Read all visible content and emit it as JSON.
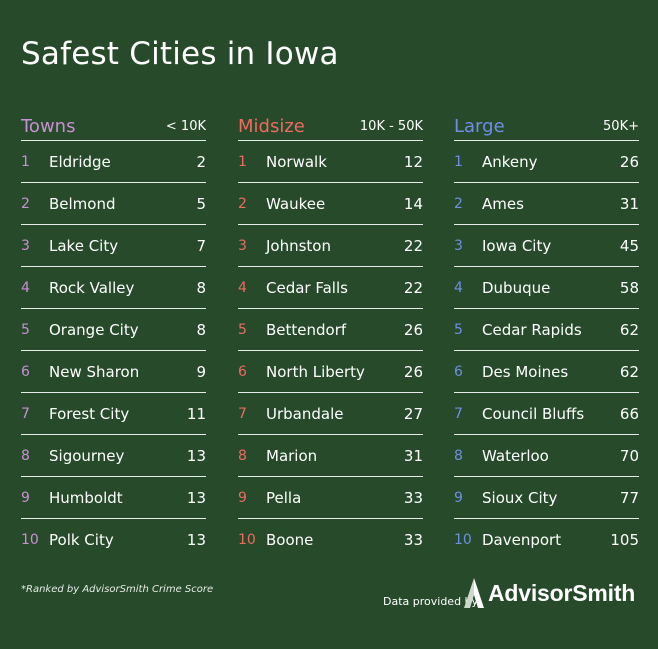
{
  "title": "Safest Cities in Iowa",
  "colors": {
    "towns": "#c98fd3",
    "midsize": "#ef6a5f",
    "large": "#6f8fe6"
  },
  "chart_data": {
    "type": "table",
    "title": "Safest Cities in Iowa",
    "groups": [
      {
        "name": "Towns",
        "range": "< 10K",
        "rows": [
          {
            "rank": "1",
            "city": "Eldridge",
            "score": "2"
          },
          {
            "rank": "2",
            "city": "Belmond",
            "score": "5"
          },
          {
            "rank": "3",
            "city": "Lake City",
            "score": "7"
          },
          {
            "rank": "4",
            "city": "Rock Valley",
            "score": "8"
          },
          {
            "rank": "5",
            "city": "Orange City",
            "score": "8"
          },
          {
            "rank": "6",
            "city": "New Sharon",
            "score": "9"
          },
          {
            "rank": "7",
            "city": "Forest City",
            "score": "11"
          },
          {
            "rank": "8",
            "city": "Sigourney",
            "score": "13"
          },
          {
            "rank": "9",
            "city": "Humboldt",
            "score": "13"
          },
          {
            "rank": "10",
            "city": "Polk City",
            "score": "13"
          }
        ]
      },
      {
        "name": "Midsize",
        "range": "10K - 50K",
        "rows": [
          {
            "rank": "1",
            "city": "Norwalk",
            "score": "12"
          },
          {
            "rank": "2",
            "city": "Waukee",
            "score": "14"
          },
          {
            "rank": "3",
            "city": "Johnston",
            "score": "22"
          },
          {
            "rank": "4",
            "city": "Cedar Falls",
            "score": "22"
          },
          {
            "rank": "5",
            "city": "Bettendorf",
            "score": "26"
          },
          {
            "rank": "6",
            "city": "North Liberty",
            "score": "26"
          },
          {
            "rank": "7",
            "city": "Urbandale",
            "score": "27"
          },
          {
            "rank": "8",
            "city": "Marion",
            "score": "31"
          },
          {
            "rank": "9",
            "city": "Pella",
            "score": "33"
          },
          {
            "rank": "10",
            "city": "Boone",
            "score": "33"
          }
        ]
      },
      {
        "name": "Large",
        "range": "50K+",
        "rows": [
          {
            "rank": "1",
            "city": "Ankeny",
            "score": "26"
          },
          {
            "rank": "2",
            "city": "Ames",
            "score": "31"
          },
          {
            "rank": "3",
            "city": "Iowa City",
            "score": "45"
          },
          {
            "rank": "4",
            "city": "Dubuque",
            "score": "58"
          },
          {
            "rank": "5",
            "city": "Cedar Rapids",
            "score": "62"
          },
          {
            "rank": "6",
            "city": "Des Moines",
            "score": "62"
          },
          {
            "rank": "7",
            "city": "Council Bluffs",
            "score": "66"
          },
          {
            "rank": "8",
            "city": "Waterloo",
            "score": "70"
          },
          {
            "rank": "9",
            "city": "Sioux City",
            "score": "77"
          },
          {
            "rank": "10",
            "city": "Davenport",
            "score": "105"
          }
        ]
      }
    ]
  },
  "footnote": "*Ranked by AdvisorSmith Crime Score",
  "footer": {
    "provided_by": "Data provided by",
    "brand": "AdvisorSmith",
    "logo_icon": "advisorsmith-logo-icon"
  }
}
